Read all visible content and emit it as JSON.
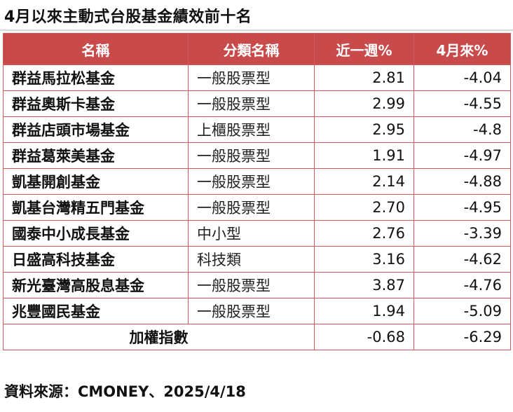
{
  "title": "4月以來主動式台股基金績效前十名",
  "table": {
    "headers": {
      "name": "名稱",
      "category": "分類名稱",
      "week": "近一週%",
      "month": "4月來%"
    },
    "rows": [
      {
        "name": "群益馬拉松基金",
        "category": "一般股票型",
        "week": "2.81",
        "month": "-4.04"
      },
      {
        "name": "群益奧斯卡基金",
        "category": "一般股票型",
        "week": "2.99",
        "month": "-4.55"
      },
      {
        "name": "群益店頭市場基金",
        "category": "上櫃股票型",
        "week": "2.95",
        "month": "-4.8"
      },
      {
        "name": "群益葛萊美基金",
        "category": "一般股票型",
        "week": "1.91",
        "month": "-4.97"
      },
      {
        "name": "凱基開創基金",
        "category": "一般股票型",
        "week": "2.14",
        "month": "-4.88"
      },
      {
        "name": "凱基台灣精五門基金",
        "category": "一般股票型",
        "week": "2.70",
        "month": "-4.95"
      },
      {
        "name": "國泰中小成長基金",
        "category": "中小型",
        "week": "2.76",
        "month": "-3.39"
      },
      {
        "name": "日盛高科技基金",
        "category": "科技類",
        "week": "3.16",
        "month": "-4.62"
      },
      {
        "name": "新光臺灣高股息基金",
        "category": "一般股票型",
        "week": "3.87",
        "month": "-4.76"
      },
      {
        "name": "兆豐國民基金",
        "category": "一般股票型",
        "week": "1.94",
        "month": "-5.09"
      }
    ],
    "index_row": {
      "label": "加權指數",
      "week": "-0.68",
      "month": "-6.29"
    }
  },
  "source": "資料來源：CMONEY、2025/4/18",
  "colors": {
    "header_bg": "#c94a4a",
    "border": "#cf5a5a"
  }
}
